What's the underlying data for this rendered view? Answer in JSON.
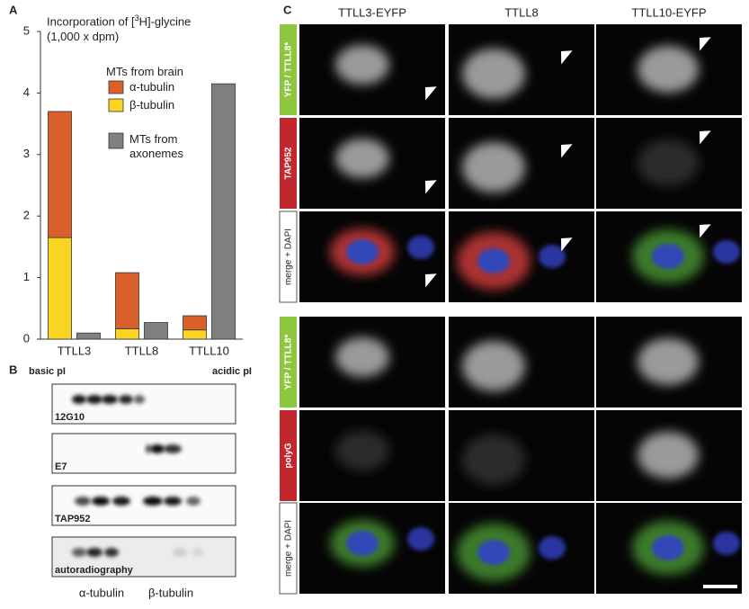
{
  "panels": {
    "a": "A",
    "b": "B",
    "c": "C"
  },
  "chart_data": {
    "type": "bar",
    "y_label": {
      "prefix": "Incorporation of [",
      "superscript": "3",
      "suffix": "H]-glycine (1,000 x dpm)"
    },
    "categories": [
      "TTLL3",
      "TTLL8",
      "TTLL10"
    ],
    "series": [
      {
        "name": "α-tubulin",
        "group": "MTs from brain",
        "color": "#d9602a",
        "values": [
          2.05,
          0.91,
          0.23
        ]
      },
      {
        "name": "β-tubulin",
        "group": "MTs from brain",
        "color": "#f9d423",
        "values": [
          1.65,
          0.17,
          0.15
        ]
      },
      {
        "name": "MTs from axonemes",
        "color": "#808080",
        "values": [
          0.1,
          0.27,
          4.15
        ]
      }
    ],
    "ylim": [
      0,
      5
    ],
    "yticks": [
      0,
      1,
      2,
      3,
      4,
      5
    ]
  },
  "blots": {
    "left_label": "basic pI",
    "right_label": "acidic pI",
    "strips": [
      "12G10",
      "E7",
      "TAP952",
      "autoradiography"
    ],
    "bottom_labels": [
      "α-tubulin",
      "β-tubulin"
    ]
  },
  "microscopy": {
    "columns": [
      "TTLL3-EYFP",
      "TTLL8",
      "TTLL10-EYFP"
    ],
    "blocks": [
      [
        "YFP / TTLL8*",
        "TAP952",
        "merge + DAPI"
      ],
      [
        "YFP / TTLL8*",
        "polyG",
        "merge + DAPI"
      ]
    ]
  }
}
